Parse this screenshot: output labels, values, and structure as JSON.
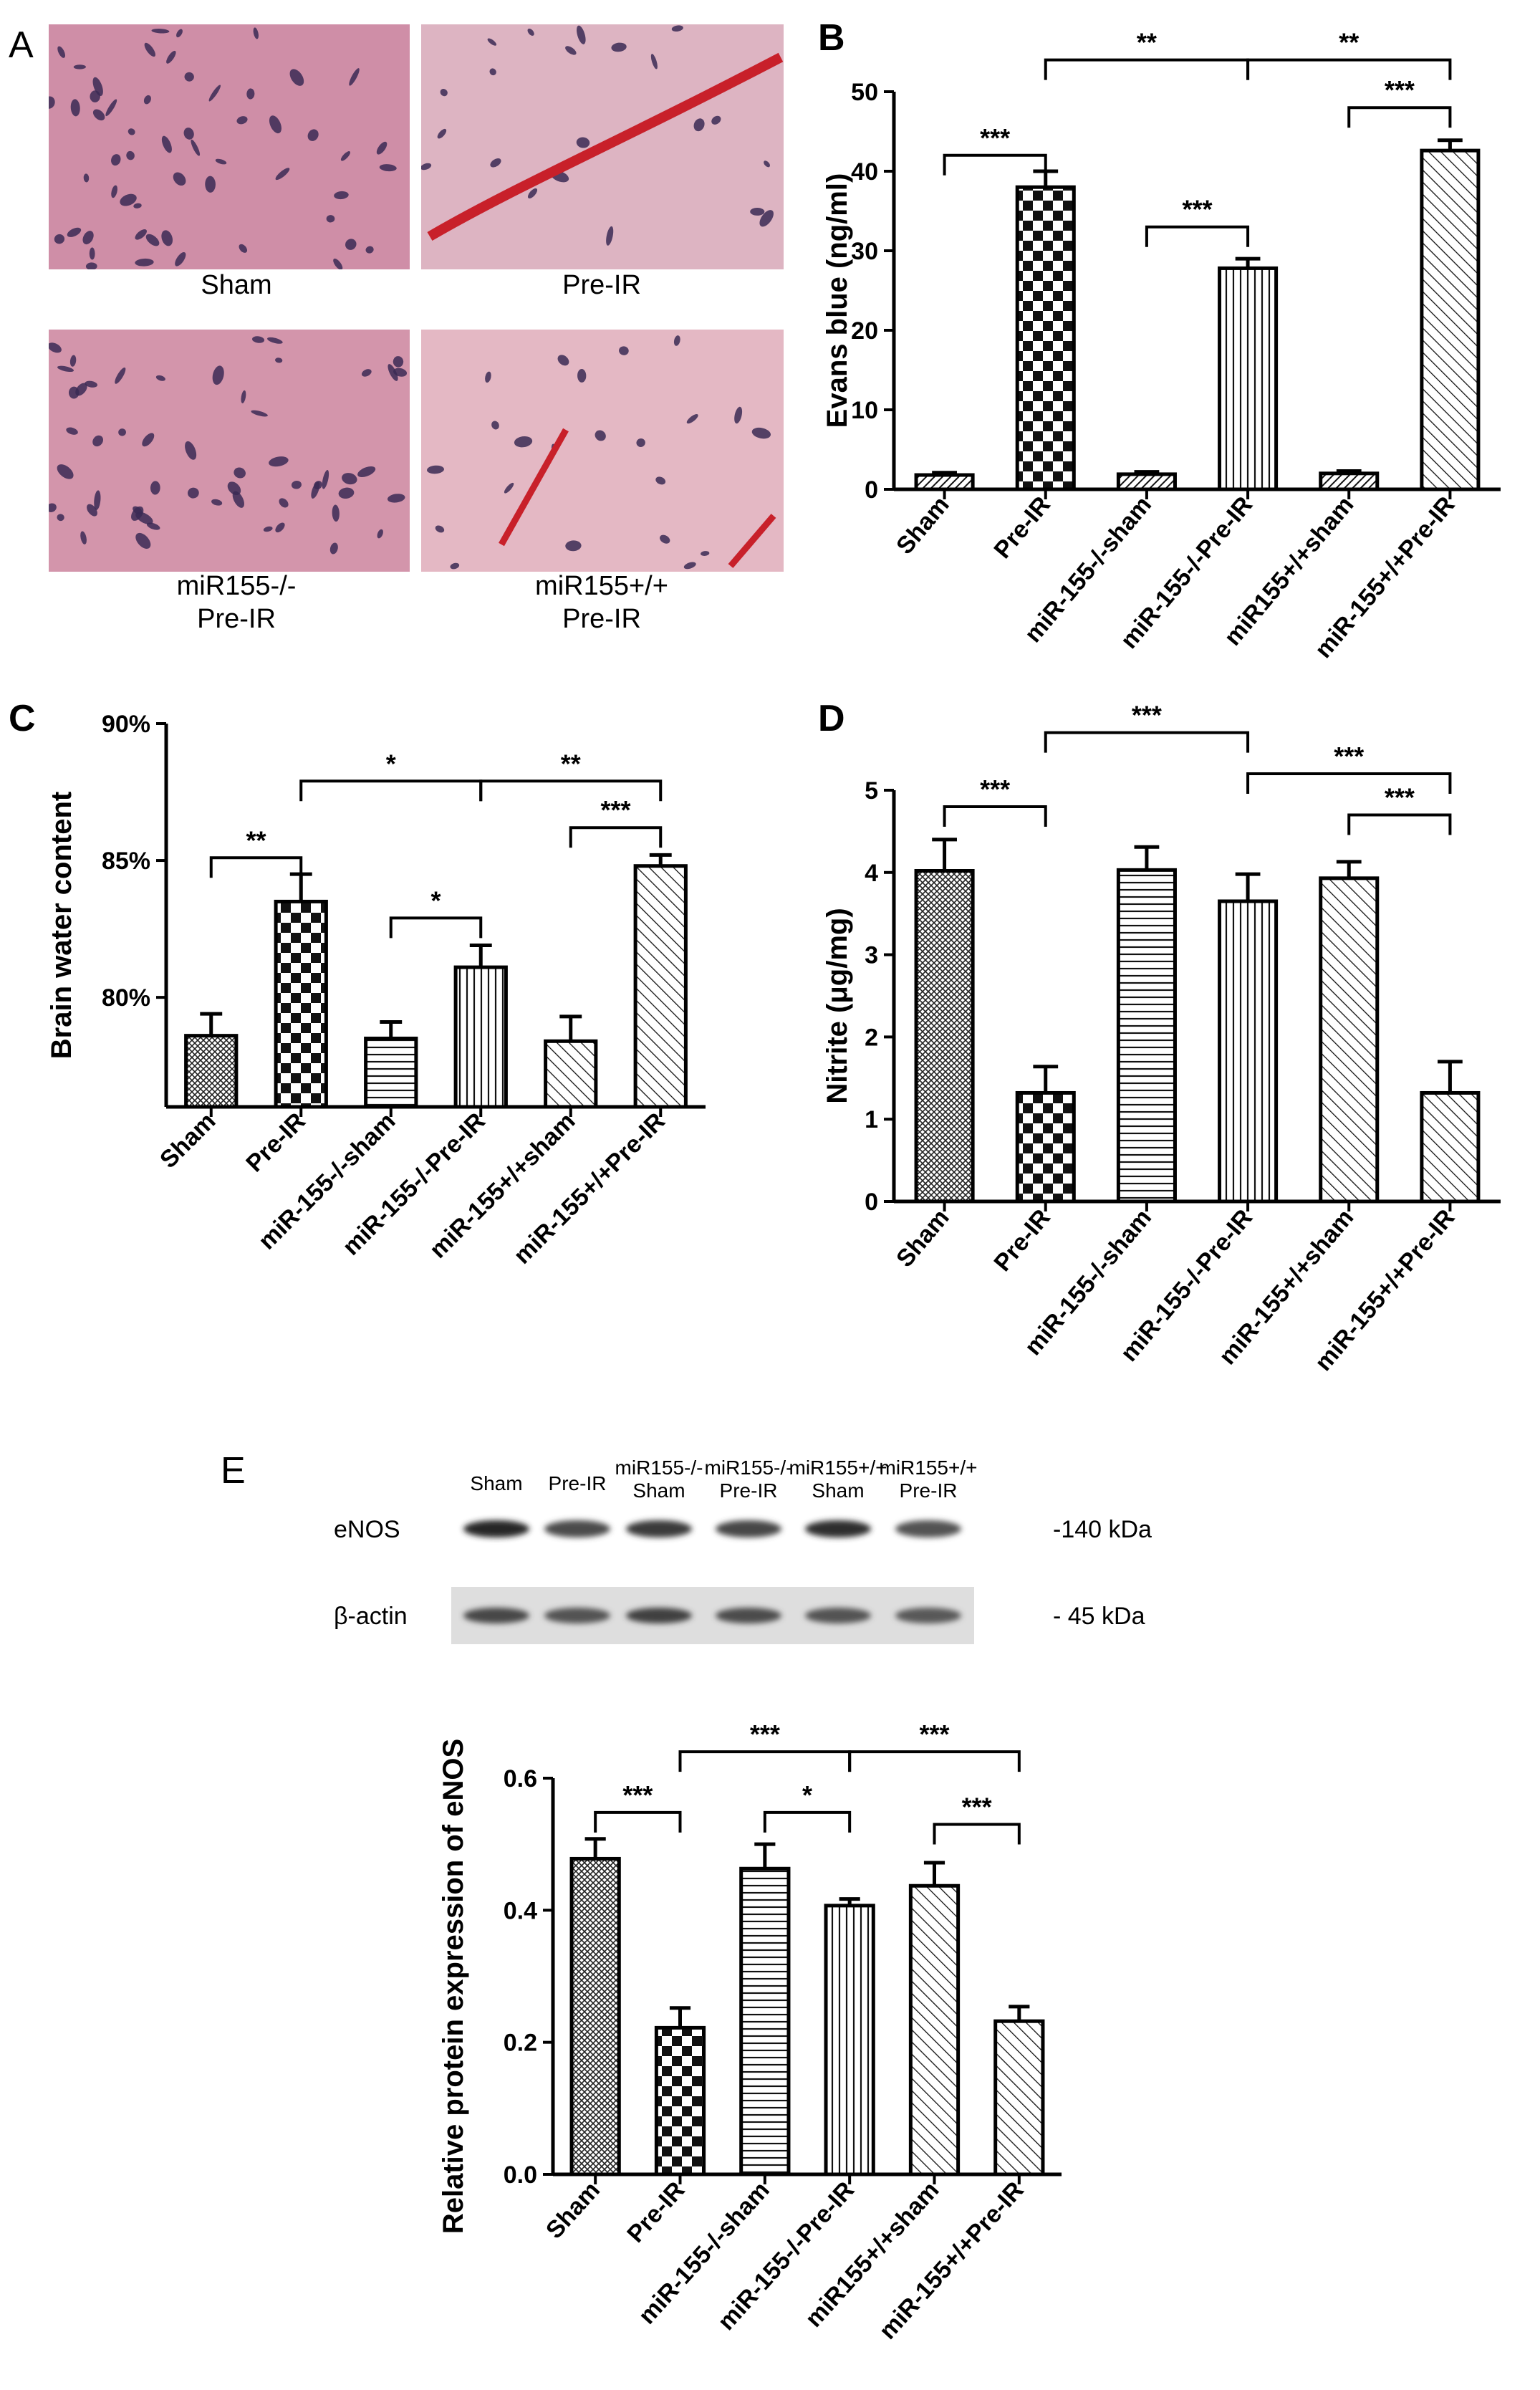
{
  "panels": {
    "A": "A",
    "B": "B",
    "C": "C",
    "D": "D",
    "E": "E"
  },
  "micrographs": [
    {
      "caption_lines": [
        "Sham"
      ],
      "tone": "#cf8ea7"
    },
    {
      "caption_lines": [
        "Pre-IR"
      ],
      "tone": "#ddb4c2"
    },
    {
      "caption_lines": [
        "miR155-/-",
        "Pre-IR"
      ],
      "tone": "#d395ab"
    },
    {
      "caption_lines": [
        "miR155+/+",
        "Pre-IR"
      ],
      "tone": "#e4b8c4"
    }
  ],
  "western_blot": {
    "lane_labels": [
      {
        "lines": [
          "Sham"
        ]
      },
      {
        "lines": [
          "Pre-IR"
        ]
      },
      {
        "lines": [
          "miR155-/-",
          "Sham"
        ]
      },
      {
        "lines": [
          "miR155-/-",
          "Pre-IR"
        ]
      },
      {
        "lines": [
          "miR155+/+",
          "Sham"
        ]
      },
      {
        "lines": [
          "miR155+/+",
          "Pre-IR"
        ]
      }
    ],
    "rows": [
      {
        "name": "eNOS",
        "size": "-140 kDa",
        "intensity": [
          1.0,
          0.7,
          0.85,
          0.75,
          0.95,
          0.65
        ]
      },
      {
        "name": "β-actin",
        "size": "-  45 kDa",
        "intensity": [
          0.75,
          0.65,
          0.8,
          0.7,
          0.65,
          0.6
        ]
      }
    ]
  },
  "chart_data": [
    {
      "panel": "B",
      "type": "bar",
      "categories": [
        "Sham",
        "Pre-IR",
        "miR-155-/-sham",
        "miR-155-/-Pre-IR",
        "miR155+/+sham",
        "miR-155+/+Pre-IR"
      ],
      "values": [
        1.8,
        38.0,
        1.9,
        27.8,
        2.0,
        42.6
      ],
      "errors": [
        0.3,
        2.0,
        0.3,
        1.2,
        0.3,
        1.3
      ],
      "patterns": [
        "hatch-dense",
        "checker",
        "hatch-dense",
        "vertical",
        "hatch-dense",
        "diag-back"
      ],
      "ylabel": "Evans blue (ng/ml)",
      "ylim": [
        0,
        50
      ],
      "yticks": [
        0,
        10,
        20,
        30,
        40,
        50
      ],
      "ytick_labels": [
        "0",
        "10",
        "20",
        "30",
        "40",
        "50"
      ],
      "comparisons": [
        {
          "from": 0,
          "to": 1,
          "label": "***",
          "level": 42
        },
        {
          "from": 2,
          "to": 3,
          "label": "***",
          "level": 33
        },
        {
          "from": 4,
          "to": 5,
          "label": "***",
          "level": 48
        },
        {
          "from": 1,
          "to": 3,
          "label": "**",
          "level": 54
        },
        {
          "from": 3,
          "to": 5,
          "label": "**",
          "level": 54
        }
      ]
    },
    {
      "panel": "C",
      "type": "bar",
      "categories": [
        "Sham",
        "Pre-IR",
        "miR-155-/-sham",
        "miR-155-/-Pre-IR",
        "miR-155+/+sham",
        "miR-155+/+Pre-IR"
      ],
      "values": [
        78.6,
        83.5,
        78.5,
        81.1,
        78.4,
        84.8
      ],
      "errors": [
        0.8,
        1.0,
        0.6,
        0.8,
        0.9,
        0.4
      ],
      "patterns": [
        "crosshatch",
        "checker",
        "horizontal",
        "vertical",
        "diag-back",
        "diag-back"
      ],
      "ylabel": "Brain water content",
      "ylim": [
        76,
        90
      ],
      "yticks": [
        80,
        85,
        90
      ],
      "ytick_labels": [
        "80%",
        "85%",
        "90%"
      ],
      "comparisons": [
        {
          "from": 0,
          "to": 1,
          "label": "**",
          "level": 85.1
        },
        {
          "from": 2,
          "to": 3,
          "label": "*",
          "level": 82.9
        },
        {
          "from": 4,
          "to": 5,
          "label": "***",
          "level": 86.2
        },
        {
          "from": 1,
          "to": 3,
          "label": "*",
          "level": 87.9
        },
        {
          "from": 3,
          "to": 5,
          "label": "**",
          "level": 87.9
        }
      ]
    },
    {
      "panel": "D",
      "type": "bar",
      "categories": [
        "Sham",
        "Pre-IR",
        "miR-155-/-sham",
        "miR-155-/-Pre-IR",
        "miR-155+/+sham",
        "miR-155+/+Pre-IR"
      ],
      "values": [
        4.02,
        1.32,
        4.03,
        3.65,
        3.93,
        1.32
      ],
      "errors": [
        0.38,
        0.32,
        0.28,
        0.33,
        0.2,
        0.38
      ],
      "patterns": [
        "crosshatch",
        "checker",
        "horizontal",
        "vertical",
        "diag-back",
        "diag-back"
      ],
      "ylabel": "Nitrite (μg/mg)",
      "ylim": [
        0,
        5
      ],
      "yticks": [
        0,
        1,
        2,
        3,
        4,
        5
      ],
      "ytick_labels": [
        "0",
        "1",
        "2",
        "3",
        "4",
        "5"
      ],
      "comparisons": [
        {
          "from": 0,
          "to": 1,
          "label": "***",
          "level": 4.8
        },
        {
          "from": 4,
          "to": 5,
          "label": "***",
          "level": 4.7
        },
        {
          "from": 1,
          "to": 3,
          "label": "***",
          "level": 5.7
        },
        {
          "from": 3,
          "to": 5,
          "label": "***",
          "level": 5.2
        }
      ]
    },
    {
      "panel": "E",
      "type": "bar",
      "categories": [
        "Sham",
        "Pre-IR",
        "miR-155-/-sham",
        "miR-155-/-Pre-IR",
        "miR155+/+sham",
        "miR-155+/+Pre-IR"
      ],
      "values": [
        0.478,
        0.222,
        0.463,
        0.407,
        0.437,
        0.232
      ],
      "errors": [
        0.03,
        0.03,
        0.037,
        0.01,
        0.035,
        0.022
      ],
      "patterns": [
        "crosshatch",
        "checker",
        "horizontal",
        "vertical",
        "diag-back",
        "diag-back"
      ],
      "ylabel": "Relative protein expression of eNOS",
      "ylim": [
        0,
        0.6
      ],
      "yticks": [
        0,
        0.2,
        0.4,
        0.6
      ],
      "ytick_labels": [
        "0.0",
        "0.2",
        "0.4",
        "0.6"
      ],
      "comparisons": [
        {
          "from": 0,
          "to": 1,
          "label": "***",
          "level": 0.548
        },
        {
          "from": 2,
          "to": 3,
          "label": "*",
          "level": 0.548
        },
        {
          "from": 4,
          "to": 5,
          "label": "***",
          "level": 0.53
        },
        {
          "from": 1,
          "to": 3,
          "label": "***",
          "level": 0.64
        },
        {
          "from": 3,
          "to": 5,
          "label": "***",
          "level": 0.64
        }
      ]
    }
  ]
}
